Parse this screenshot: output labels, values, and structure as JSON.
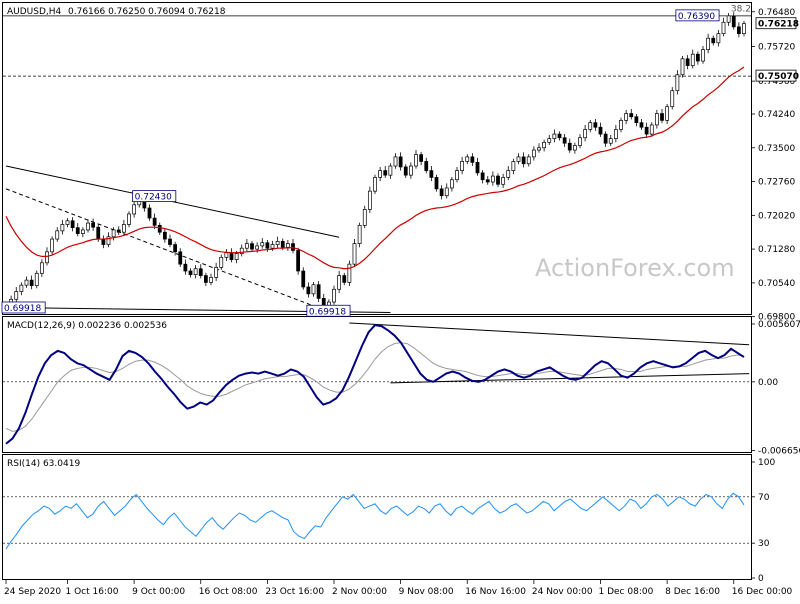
{
  "chart_data": [
    {
      "type": "candlestick",
      "symbol": "AUDUSD,H4",
      "ohlc_header": "0.76166 0.76250 0.76094 0.76218",
      "watermark": "ActionForex.com",
      "ylim": [
        0.6988,
        0.7665
      ],
      "y_ticks": [
        "0.76480",
        "0.75720",
        "0.74960",
        "0.74240",
        "0.73500",
        "0.72760",
        "0.72020",
        "0.71280",
        "0.70540",
        "0.69800"
      ],
      "price_tags": [
        {
          "label": "0.76218",
          "value": 0.76218,
          "kind": "current"
        },
        {
          "label": "0.75070",
          "value": 0.7507,
          "kind": "level"
        }
      ],
      "horizontal_levels": [
        {
          "value": 0.7639,
          "style": "solid"
        },
        {
          "value": 0.7507,
          "style": "dashed"
        }
      ],
      "annotations": [
        {
          "text": "0.72430",
          "x": 29,
          "y": 0.7243
        },
        {
          "text": "0.69918",
          "x": 63,
          "y": 0.69918
        },
        {
          "text": "0.76390",
          "x": 135,
          "y": 0.7639
        },
        {
          "text": "38.2",
          "x": 143,
          "y": 0.7655
        },
        {
          "text": "0.69918",
          "x": 0,
          "y": 0.6999
        }
      ],
      "trendlines": [
        {
          "style": "solid",
          "points": [
            [
              0,
              0.731
            ],
            [
              65,
              0.7154
            ]
          ]
        },
        {
          "style": "dashed",
          "points": [
            [
              0,
              0.726
            ],
            [
              62,
              0.6995
            ]
          ]
        },
        {
          "style": "solid",
          "points": [
            [
              0,
              0.7
            ],
            [
              75,
              0.6989
            ]
          ]
        }
      ],
      "x_labels": [
        {
          "text": "24 Sep 2020",
          "x": 0
        },
        {
          "text": "1 Oct 16:00",
          "x": 12
        },
        {
          "text": "9 Oct 00:00",
          "x": 25
        },
        {
          "text": "16 Oct 08:00",
          "x": 38
        },
        {
          "text": "23 Oct 16:00",
          "x": 51
        },
        {
          "text": "2 Nov 00:00",
          "x": 64
        },
        {
          "text": "9 Nov 08:00",
          "x": 77
        },
        {
          "text": "16 Nov 16:00",
          "x": 90
        },
        {
          "text": "24 Nov 00:00",
          "x": 103
        },
        {
          "text": "1 Dec 08:00",
          "x": 116
        },
        {
          "text": "8 Dec 16:00",
          "x": 129
        },
        {
          "text": "16 Dec 00:00",
          "x": 142
        }
      ],
      "close": [
        0.7002,
        0.7018,
        0.7035,
        0.7049,
        0.706,
        0.7048,
        0.7075,
        0.7098,
        0.7122,
        0.715,
        0.7168,
        0.7182,
        0.719,
        0.7175,
        0.7162,
        0.717,
        0.7185,
        0.7176,
        0.715,
        0.7138,
        0.7155,
        0.717,
        0.7165,
        0.7182,
        0.7205,
        0.7225,
        0.7238,
        0.7218,
        0.7196,
        0.718,
        0.7165,
        0.715,
        0.7138,
        0.7122,
        0.7095,
        0.708,
        0.7072,
        0.7085,
        0.707,
        0.7055,
        0.7066,
        0.7088,
        0.711,
        0.712,
        0.7105,
        0.7118,
        0.713,
        0.714,
        0.7128,
        0.7135,
        0.7142,
        0.713,
        0.7138,
        0.7145,
        0.7132,
        0.714,
        0.7125,
        0.708,
        0.7045,
        0.703,
        0.705,
        0.702,
        0.7003,
        0.7012,
        0.704,
        0.707,
        0.7055,
        0.7095,
        0.714,
        0.718,
        0.7215,
        0.7255,
        0.7285,
        0.73,
        0.729,
        0.731,
        0.733,
        0.7308,
        0.729,
        0.731,
        0.7335,
        0.732,
        0.73,
        0.7285,
        0.726,
        0.7245,
        0.7262,
        0.728,
        0.73,
        0.732,
        0.733,
        0.7318,
        0.7295,
        0.728,
        0.7275,
        0.7288,
        0.727,
        0.7285,
        0.73,
        0.732,
        0.733,
        0.7315,
        0.733,
        0.7345,
        0.735,
        0.7362,
        0.737,
        0.738,
        0.7372,
        0.736,
        0.7345,
        0.7355,
        0.7372,
        0.739,
        0.7405,
        0.7395,
        0.738,
        0.736,
        0.737,
        0.739,
        0.741,
        0.7425,
        0.7418,
        0.7405,
        0.7395,
        0.738,
        0.74,
        0.7425,
        0.741,
        0.744,
        0.7475,
        0.751,
        0.7545,
        0.753,
        0.7555,
        0.754,
        0.7565,
        0.759,
        0.758,
        0.76,
        0.7625,
        0.7639,
        0.7615,
        0.76,
        0.7622
      ],
      "moving_average": [
        0.72,
        0.7178,
        0.716,
        0.7145,
        0.7132,
        0.7122,
        0.7115,
        0.7112,
        0.7112,
        0.7115,
        0.712,
        0.7126,
        0.7132,
        0.7136,
        0.7139,
        0.7142,
        0.7146,
        0.7149,
        0.715,
        0.715,
        0.7151,
        0.7153,
        0.7155,
        0.7158,
        0.7162,
        0.7167,
        0.7172,
        0.7175,
        0.7176,
        0.7176,
        0.7175,
        0.7173,
        0.717,
        0.7166,
        0.7161,
        0.7155,
        0.7149,
        0.7144,
        0.7138,
        0.7132,
        0.7127,
        0.7124,
        0.7122,
        0.7121,
        0.712,
        0.712,
        0.7121,
        0.7122,
        0.7123,
        0.7124,
        0.7126,
        0.7127,
        0.7128,
        0.713,
        0.713,
        0.7131,
        0.7131,
        0.7128,
        0.7123,
        0.7117,
        0.7112,
        0.7105,
        0.7098,
        0.7092,
        0.7088,
        0.7087,
        0.7085,
        0.7086,
        0.709,
        0.7097,
        0.7106,
        0.7117,
        0.7129,
        0.7141,
        0.7151,
        0.7162,
        0.7173,
        0.7181,
        0.7187,
        0.7194,
        0.7202,
        0.7208,
        0.7213,
        0.7216,
        0.7218,
        0.7219,
        0.7221,
        0.7224,
        0.7228,
        0.7233,
        0.7239,
        0.7243,
        0.7246,
        0.7248,
        0.725,
        0.7252,
        0.7253,
        0.7255,
        0.7258,
        0.7262,
        0.7267,
        0.727,
        0.7274,
        0.7279,
        0.7284,
        0.7289,
        0.7295,
        0.7301,
        0.7306,
        0.731,
        0.7313,
        0.7317,
        0.7322,
        0.7327,
        0.7333,
        0.7338,
        0.7341,
        0.7343,
        0.7346,
        0.735,
        0.7355,
        0.7361,
        0.7366,
        0.7369,
        0.7372,
        0.7373,
        0.7376,
        0.7381,
        0.7384,
        0.739,
        0.7398,
        0.7408,
        0.742,
        0.743,
        0.744,
        0.7447,
        0.7456,
        0.7466,
        0.7474,
        0.7483,
        0.7494,
        0.7505,
        0.7513,
        0.7519,
        0.7527
      ]
    },
    {
      "type": "line",
      "title": "MACD(12,26,9) 0.002236 0.002536",
      "ylim": [
        -0.0068,
        0.0058
      ],
      "y_ticks": [
        "0.005607",
        "0.00",
        "-0.006656"
      ],
      "zero_line": 0,
      "trendlines": [
        {
          "style": "solid",
          "points": [
            [
              67,
              0.0057
            ],
            [
              145,
              0.0036
            ]
          ]
        },
        {
          "style": "solid",
          "points": [
            [
              75,
              -0.0001
            ],
            [
              145,
              0.0008
            ]
          ]
        }
      ],
      "series": [
        {
          "kind": "main",
          "values": [
            -0.006,
            -0.0055,
            -0.0045,
            -0.003,
            -0.0012,
            0.0005,
            0.0018,
            0.0026,
            0.003,
            0.0028,
            0.0022,
            0.0018,
            0.0016,
            0.0012,
            0.0008,
            0.0005,
            0.0002,
            0.0012,
            0.0025,
            0.003,
            0.0028,
            0.0024,
            0.0018,
            0.001,
            0.0003,
            -0.0005,
            -0.0012,
            -0.002,
            -0.0026,
            -0.0024,
            -0.002,
            -0.0022,
            -0.0018,
            -0.001,
            -0.0003,
            0.0002,
            0.0006,
            0.0008,
            0.0009,
            0.0008,
            0.001,
            0.0008,
            0.0006,
            0.0008,
            0.0012,
            0.001,
            0.0005,
            -0.0005,
            -0.0015,
            -0.0022,
            -0.002,
            -0.0016,
            -0.0008,
            0.0005,
            0.002,
            0.0035,
            0.0048,
            0.0055,
            0.0054,
            0.005,
            0.0045,
            0.0038,
            0.0028,
            0.0018,
            0.0008,
            0.0002,
            0.0,
            0.0004,
            0.0008,
            0.001,
            0.0008,
            0.0004,
            0.0001,
            0.0,
            0.0002,
            0.0006,
            0.001,
            0.0012,
            0.001,
            0.0006,
            0.0004,
            0.0006,
            0.001,
            0.0012,
            0.0014,
            0.001,
            0.0006,
            0.0003,
            0.0002,
            0.0004,
            0.001,
            0.0016,
            0.002,
            0.0018,
            0.0012,
            0.0006,
            0.0004,
            0.0008,
            0.0014,
            0.0018,
            0.002,
            0.0018,
            0.0016,
            0.0014,
            0.0015,
            0.0018,
            0.0023,
            0.0028,
            0.003,
            0.0026,
            0.0023,
            0.0026,
            0.0032,
            0.0028,
            0.0024
          ]
        },
        {
          "kind": "signal",
          "values": [
            -0.0045,
            -0.0048,
            -0.0047,
            -0.0043,
            -0.0036,
            -0.0027,
            -0.0018,
            -0.0009,
            0.0,
            0.0006,
            0.0011,
            0.0013,
            0.0014,
            0.0014,
            0.0013,
            0.0011,
            0.0009,
            0.001,
            0.0013,
            0.0017,
            0.002,
            0.0021,
            0.0021,
            0.0019,
            0.0016,
            0.0012,
            0.0007,
            0.0002,
            -0.0004,
            -0.0008,
            -0.0011,
            -0.0013,
            -0.0014,
            -0.0014,
            -0.0012,
            -0.0009,
            -0.0006,
            -0.0003,
            -0.0001,
            0.0001,
            0.0003,
            0.0004,
            0.0005,
            0.0005,
            0.0006,
            0.0007,
            0.0007,
            0.0004,
            0.0,
            -0.0005,
            -0.0008,
            -0.001,
            -0.001,
            -0.0007,
            -0.0002,
            0.0005,
            0.0013,
            0.0022,
            0.0029,
            0.0034,
            0.0037,
            0.0038,
            0.0037,
            0.0033,
            0.0028,
            0.0023,
            0.0018,
            0.0015,
            0.0013,
            0.0012,
            0.0011,
            0.001,
            0.0008,
            0.0006,
            0.0005,
            0.0005,
            0.0006,
            0.0007,
            0.0008,
            0.0008,
            0.0007,
            0.0007,
            0.0008,
            0.0009,
            0.001,
            0.001,
            0.0009,
            0.0008,
            0.0007,
            0.0006,
            0.0007,
            0.0009,
            0.0011,
            0.0013,
            0.0013,
            0.0012,
            0.001,
            0.001,
            0.001,
            0.0012,
            0.0013,
            0.0014,
            0.0015,
            0.0015,
            0.0015,
            0.0015,
            0.0017,
            0.0019,
            0.0021,
            0.0022,
            0.0023,
            0.0023,
            0.0025,
            0.0026,
            0.0025
          ]
        }
      ]
    },
    {
      "type": "line",
      "title": "RSI(14) 63.0419",
      "ylim": [
        0,
        100
      ],
      "y_ticks": [
        "100",
        "70",
        "30",
        "0"
      ],
      "levels": [
        70,
        30
      ],
      "series": [
        {
          "kind": "rsi",
          "values": [
            25,
            32,
            38,
            45,
            50,
            55,
            58,
            62,
            60,
            55,
            58,
            62,
            60,
            64,
            58,
            52,
            55,
            62,
            66,
            60,
            54,
            58,
            62,
            68,
            72,
            66,
            60,
            55,
            50,
            46,
            52,
            56,
            50,
            44,
            40,
            36,
            42,
            48,
            52,
            46,
            42,
            47,
            52,
            56,
            54,
            50,
            48,
            52,
            56,
            58,
            55,
            52,
            50,
            40,
            36,
            34,
            40,
            45,
            44,
            52,
            58,
            64,
            70,
            68,
            72,
            66,
            60,
            62,
            64,
            58,
            55,
            60,
            62,
            58,
            54,
            57,
            62,
            60,
            56,
            62,
            64,
            58,
            54,
            60,
            62,
            58,
            55,
            60,
            63,
            66,
            60,
            56,
            58,
            62,
            64,
            60,
            56,
            58,
            62,
            66,
            64,
            58,
            62,
            66,
            68,
            64,
            60,
            58,
            62,
            66,
            70,
            66,
            62,
            58,
            62,
            68,
            66,
            60,
            64,
            70,
            72,
            68,
            62,
            66,
            70,
            68,
            64,
            62,
            68,
            72,
            70,
            64,
            60,
            68,
            73,
            70,
            63
          ]
        }
      ]
    }
  ],
  "colors": {
    "price": "#000000",
    "ma": "#cc0000",
    "macd_main": "#000080",
    "macd_signal": "#9a9a9a",
    "rsi": "#1e90ff",
    "watermark": "#c8c8c8"
  }
}
